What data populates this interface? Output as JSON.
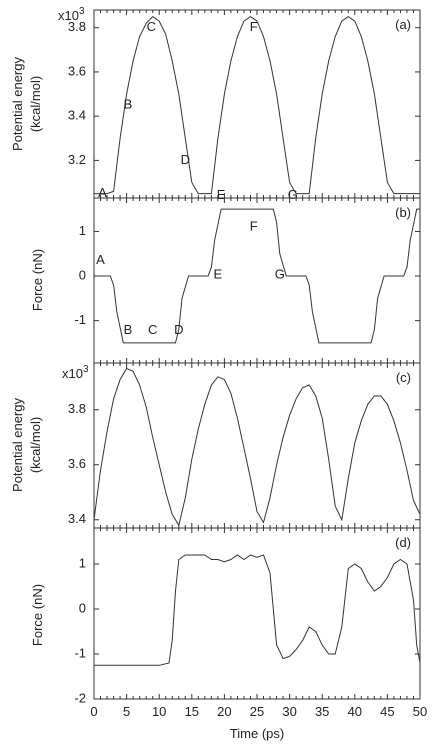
{
  "chart_data": [
    {
      "panel_label": "(a)",
      "type": "line",
      "ylabel_line1": "Potential energy",
      "ylabel_line2": "(kcal/mol)",
      "y_multiplier": "x10",
      "y_multiplier_exponent": "3",
      "ylim": [
        3.03,
        3.88
      ],
      "yticks": [
        "3.2",
        "3.4",
        "3.6",
        "3.8"
      ],
      "y_units_scale": 1000,
      "xlim": [
        0,
        50
      ],
      "series": [
        {
          "x": [
            0,
            1,
            2,
            3,
            4,
            5,
            6,
            7,
            8,
            9,
            10,
            11,
            12,
            13,
            14,
            15,
            16,
            17,
            18,
            19,
            20,
            21,
            22,
            23,
            24,
            25,
            26,
            27,
            28,
            29,
            30,
            31,
            32,
            33,
            34,
            35,
            36,
            37,
            38,
            39,
            40,
            41,
            42,
            43,
            44,
            45,
            46,
            47,
            48,
            49,
            50
          ],
          "y": [
            3.05,
            3.05,
            3.05,
            3.06,
            3.3,
            3.5,
            3.65,
            3.76,
            3.82,
            3.85,
            3.83,
            3.77,
            3.65,
            3.5,
            3.3,
            3.1,
            3.05,
            3.05,
            3.05,
            3.3,
            3.5,
            3.65,
            3.76,
            3.83,
            3.85,
            3.83,
            3.76,
            3.65,
            3.5,
            3.3,
            3.1,
            3.05,
            3.05,
            3.05,
            3.3,
            3.5,
            3.65,
            3.76,
            3.83,
            3.85,
            3.83,
            3.76,
            3.65,
            3.5,
            3.3,
            3.1,
            3.05,
            3.05,
            3.05,
            3.05,
            3.05
          ]
        }
      ],
      "annotations": [
        {
          "text": "A",
          "x": 1.3,
          "y": 3.05
        },
        {
          "text": "B",
          "x": 5.2,
          "y": 3.45
        },
        {
          "text": "C",
          "x": 8.8,
          "y": 3.8
        },
        {
          "text": "D",
          "x": 14.0,
          "y": 3.2
        },
        {
          "text": "E",
          "x": 19.5,
          "y": 3.04
        },
        {
          "text": "F",
          "x": 24.5,
          "y": 3.8
        },
        {
          "text": "G",
          "x": 30.5,
          "y": 3.04
        }
      ]
    },
    {
      "panel_label": "(b)",
      "type": "line",
      "ylabel": "Force (nN)",
      "ylim": [
        -1.95,
        1.75
      ],
      "yticks": [
        "-1",
        "0",
        "1"
      ],
      "xlim": [
        0,
        50
      ],
      "series": [
        {
          "x": [
            0,
            2.5,
            3,
            3.5,
            4.5,
            12.5,
            13,
            13.5,
            14.5,
            15,
            15.5,
            17.5,
            18,
            18.5,
            19.5,
            27.5,
            28,
            28.5,
            29.5,
            30,
            30.5,
            32.5,
            33,
            33.5,
            34.5,
            42.5,
            43,
            43.5,
            44.5,
            45,
            45.5,
            47.5,
            48,
            48.5,
            49.5,
            50
          ],
          "y": [
            0,
            0,
            -0.2,
            -0.8,
            -1.5,
            -1.5,
            -1.2,
            -0.5,
            0,
            0,
            0,
            0,
            0.2,
            0.8,
            1.5,
            1.5,
            1.2,
            0.5,
            0,
            0,
            0,
            0,
            -0.2,
            -0.8,
            -1.5,
            -1.5,
            -1.2,
            -0.5,
            0,
            0,
            0,
            0,
            0.2,
            0.8,
            1.5,
            1.5
          ]
        }
      ],
      "annotations": [
        {
          "text": "A",
          "x": 1.0,
          "y": 0.35
        },
        {
          "text": "B",
          "x": 5.2,
          "y": -1.22
        },
        {
          "text": "C",
          "x": 9.0,
          "y": -1.22
        },
        {
          "text": "D",
          "x": 13.0,
          "y": -1.22
        },
        {
          "text": "E",
          "x": 19.0,
          "y": 0.02
        },
        {
          "text": "F",
          "x": 24.5,
          "y": 1.1
        },
        {
          "text": "G",
          "x": 28.5,
          "y": 0.02
        }
      ]
    },
    {
      "panel_label": "(c)",
      "type": "line",
      "ylabel_line1": "Potential energy",
      "ylabel_line2": "(kcal/mol)",
      "y_multiplier": "x10",
      "y_multiplier_exponent": "3",
      "ylim": [
        3.37,
        3.97
      ],
      "yticks": [
        "3.4",
        "3.6",
        "3.8"
      ],
      "y_units_scale": 1000,
      "xlim": [
        0,
        50
      ],
      "series": [
        {
          "x": [
            0,
            1,
            2,
            3,
            4,
            5,
            6,
            7,
            8,
            9,
            10,
            11,
            12,
            13,
            14,
            15,
            16,
            17,
            18,
            19,
            20,
            21,
            22,
            23,
            24,
            25,
            26,
            27,
            28,
            29,
            30,
            31,
            32,
            33,
            34,
            35,
            36,
            37,
            38,
            39,
            40,
            41,
            42,
            43,
            44,
            45,
            46,
            47,
            48,
            49,
            50
          ],
          "y": [
            3.4,
            3.58,
            3.72,
            3.84,
            3.91,
            3.95,
            3.94,
            3.89,
            3.81,
            3.7,
            3.6,
            3.5,
            3.42,
            3.38,
            3.48,
            3.62,
            3.73,
            3.82,
            3.89,
            3.92,
            3.91,
            3.86,
            3.77,
            3.66,
            3.55,
            3.43,
            3.39,
            3.48,
            3.6,
            3.7,
            3.78,
            3.84,
            3.88,
            3.89,
            3.85,
            3.77,
            3.62,
            3.45,
            3.4,
            3.55,
            3.68,
            3.76,
            3.82,
            3.85,
            3.85,
            3.82,
            3.76,
            3.68,
            3.58,
            3.47,
            3.42
          ]
        }
      ]
    },
    {
      "panel_label": "(d)",
      "type": "line",
      "ylabel": "Force (nN)",
      "xlabel": "Time (ps)",
      "ylim": [
        -2,
        1.8
      ],
      "yticks": [
        "-2",
        "-1",
        "0",
        "1"
      ],
      "xlim": [
        0,
        50
      ],
      "xticks": [
        "0",
        "5",
        "10",
        "15",
        "20",
        "25",
        "30",
        "35",
        "40",
        "45",
        "50"
      ],
      "series": [
        {
          "x": [
            0,
            5,
            10,
            11.5,
            12,
            12.5,
            13,
            14,
            15,
            17,
            18,
            19,
            20,
            21,
            22,
            23,
            24,
            25,
            26,
            27,
            28,
            29,
            30,
            31,
            32,
            33,
            34,
            35,
            36,
            37,
            38,
            39,
            40,
            41,
            42,
            43,
            44,
            45,
            46,
            47,
            48,
            49,
            49.5,
            50
          ],
          "y": [
            -1.25,
            -1.25,
            -1.25,
            -1.2,
            -0.7,
            0.4,
            1.1,
            1.2,
            1.2,
            1.2,
            1.1,
            1.1,
            1.05,
            1.1,
            1.2,
            1.1,
            1.2,
            1.15,
            1.2,
            0.8,
            -0.8,
            -1.1,
            -1.05,
            -0.9,
            -0.7,
            -0.4,
            -0.5,
            -0.8,
            -1.0,
            -1.0,
            -0.4,
            0.9,
            1.0,
            0.9,
            0.6,
            0.4,
            0.5,
            0.7,
            1.0,
            1.1,
            1.0,
            0.2,
            -0.8,
            -1.2
          ]
        }
      ]
    }
  ]
}
